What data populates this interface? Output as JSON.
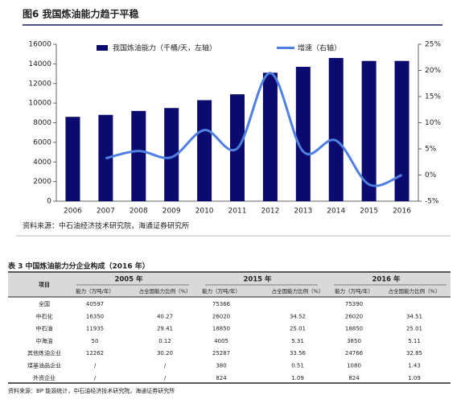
{
  "figure": {
    "title": "图6 我国炼油能力趋于平稳",
    "source": "资料来源：中石油经济技术研究院，海通证券研究所"
  },
  "chart_data": {
    "type": "bar",
    "categories": [
      "2006",
      "2007",
      "2008",
      "2009",
      "2010",
      "2011",
      "2012",
      "2013",
      "2014",
      "2015",
      "2016"
    ],
    "series": [
      {
        "name": "我国炼油能力（千桶/天，左轴）",
        "color": "#0b0b6f",
        "values": [
          8600,
          8800,
          9200,
          9500,
          10300,
          10900,
          13100,
          13700,
          14600,
          14300,
          14300
        ]
      },
      {
        "name": "增速（右轴）",
        "type": "line",
        "axis": "y2",
        "color": "#4f80e1",
        "values": [
          null,
          3.2,
          4.6,
          3.4,
          8.6,
          5.1,
          19.5,
          4.5,
          6.6,
          -1.8,
          0
        ]
      }
    ],
    "ylim": [
      0,
      16000
    ],
    "yticks": [
      0,
      2000,
      4000,
      6000,
      8000,
      10000,
      12000,
      14000,
      16000
    ],
    "y2lim": [
      -5,
      25
    ],
    "y2ticks": [
      {
        "value": -5,
        "label": "-5%"
      },
      {
        "value": 0,
        "label": "0%"
      },
      {
        "value": 5,
        "label": "5%"
      },
      {
        "value": 10,
        "label": "10%"
      },
      {
        "value": 15,
        "label": "15%"
      },
      {
        "value": 20,
        "label": "20%"
      },
      {
        "value": 25,
        "label": "25%"
      }
    ]
  },
  "table": {
    "title": "表 3 中国炼油能力分企业构成（2016 年）",
    "item_header": "项目",
    "years": [
      "2005 年",
      "2015 年",
      "2016 年"
    ],
    "sub_headers": [
      "能力（万吨/年）",
      "占全国能力比例（%）"
    ],
    "rows": [
      [
        "全国",
        "40597",
        null,
        "75366",
        null,
        "75390",
        null
      ],
      [
        "中石化",
        "16350",
        "40.27",
        "26020",
        "34.52",
        "26020",
        "34.51"
      ],
      [
        "中石油",
        "11935",
        "29.41",
        "18850",
        "25.01",
        "18850",
        "25.01"
      ],
      [
        "中海油",
        "50",
        "0.12",
        "4005",
        "5.31",
        "3850",
        "5.11"
      ],
      [
        "其他炼油企业",
        "12262",
        "30.20",
        "25287",
        "33.56",
        "24766",
        "32.85"
      ],
      [
        "煤基油品企业",
        "/",
        "/",
        "380",
        "0.51",
        "1080",
        "1.43"
      ],
      [
        "外资企业",
        "/",
        "/",
        "824",
        "1.09",
        "824",
        "1.09"
      ]
    ],
    "source": "资料来源：BP 能源统计，中石油经济技术研究院，海通证券研究所"
  }
}
